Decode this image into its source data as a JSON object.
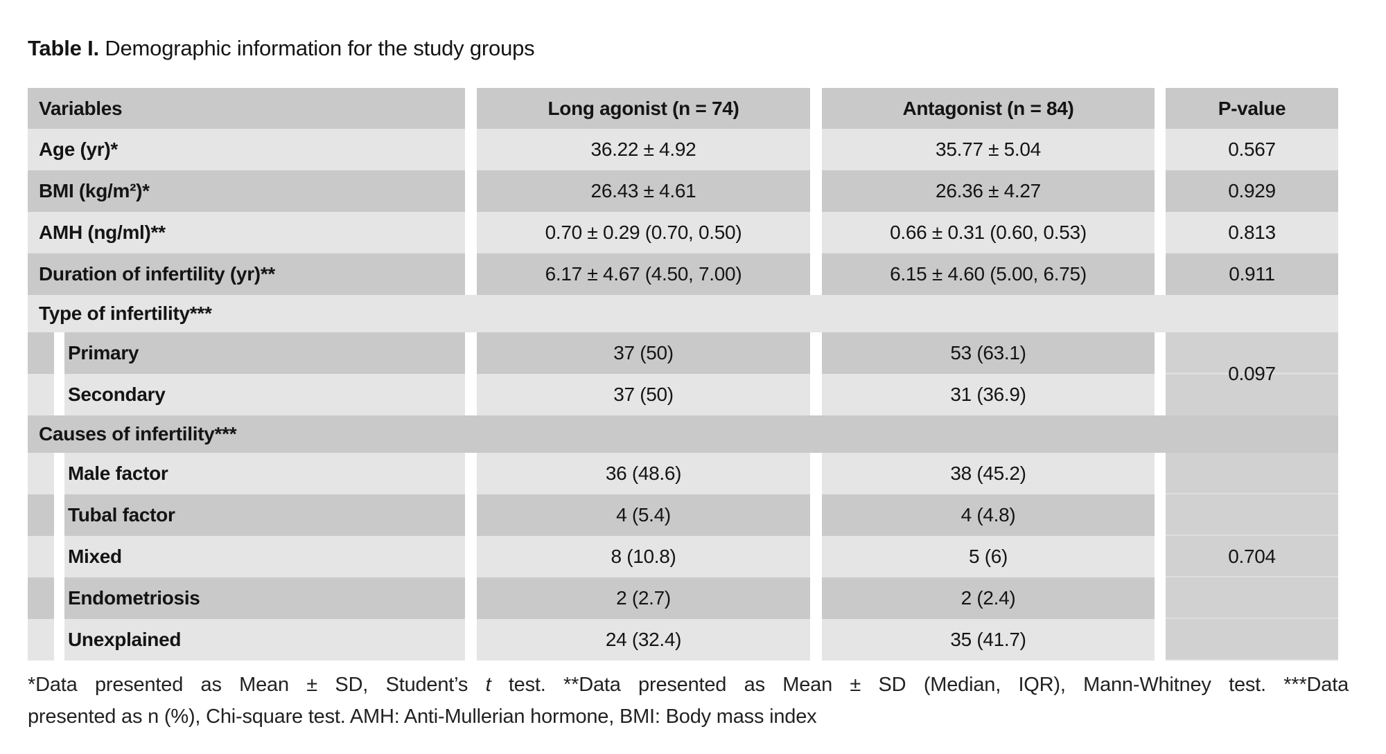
{
  "title": {
    "label": "Table I.",
    "text": " Demographic information for the study groups"
  },
  "colors": {
    "row_medium": "#c9c9c9",
    "row_light": "#e5e5e5",
    "merged_pcell": "#d1d1d1",
    "background": "#ffffff",
    "text": "#141414"
  },
  "table": {
    "columns": [
      "Variables",
      "Long agonist (n = 74)",
      "Antagonist (n = 84)",
      "P-value"
    ],
    "rows": {
      "age": {
        "label": "Age (yr)*",
        "long_agonist": "36.22 ± 4.92",
        "antagonist": "35.77 ± 5.04",
        "p": "0.567"
      },
      "bmi": {
        "label": "BMI (kg/m²)*",
        "long_agonist": "26.43 ± 4.61",
        "antagonist": "26.36 ± 4.27",
        "p": "0.929"
      },
      "amh": {
        "label": "AMH (ng/ml)**",
        "long_agonist": "0.70 ± 0.29 (0.70, 0.50)",
        "antagonist": "0.66 ± 0.31 (0.60, 0.53)",
        "p": "0.813"
      },
      "duration": {
        "label": "Duration of infertility (yr)**",
        "long_agonist": "6.17 ± 4.67 (4.50, 7.00)",
        "antagonist": "6.15 ± 4.60 (5.00, 6.75)",
        "p": "0.911"
      },
      "type_section": {
        "label": "Type of infertility***",
        "p": "0.097"
      },
      "primary": {
        "label": "Primary",
        "long_agonist": "37 (50)",
        "antagonist": "53 (63.1)"
      },
      "secondary": {
        "label": "Secondary",
        "long_agonist": "37 (50)",
        "antagonist": "31 (36.9)"
      },
      "causes_section": {
        "label": "Causes of infertility***",
        "p": "0.704"
      },
      "male_factor": {
        "label": "Male factor",
        "long_agonist": "36 (48.6)",
        "antagonist": "38 (45.2)"
      },
      "tubal_factor": {
        "label": "Tubal factor",
        "long_agonist": "4 (5.4)",
        "antagonist": "4 (4.8)"
      },
      "mixed": {
        "label": "Mixed",
        "long_agonist": "8 (10.8)",
        "antagonist": "5 (6)"
      },
      "endometriosis": {
        "label": "Endometriosis",
        "long_agonist": "2 (2.7)",
        "antagonist": "2 (2.4)"
      },
      "unexplained": {
        "label": "Unexplained",
        "long_agonist": "24 (32.4)",
        "antagonist": "35 (41.7)"
      }
    }
  },
  "footnote": {
    "line1_a": "*Data presented as Mean ± SD, Student’s ",
    "line1_t": "t",
    "line1_b": " test. **Data presented as Mean ± SD (Median, IQR), Mann-Whitney test. ***Data",
    "line2": "presented as n (%), Chi-square test. AMH: Anti-Mullerian hormone, BMI: Body mass index"
  }
}
